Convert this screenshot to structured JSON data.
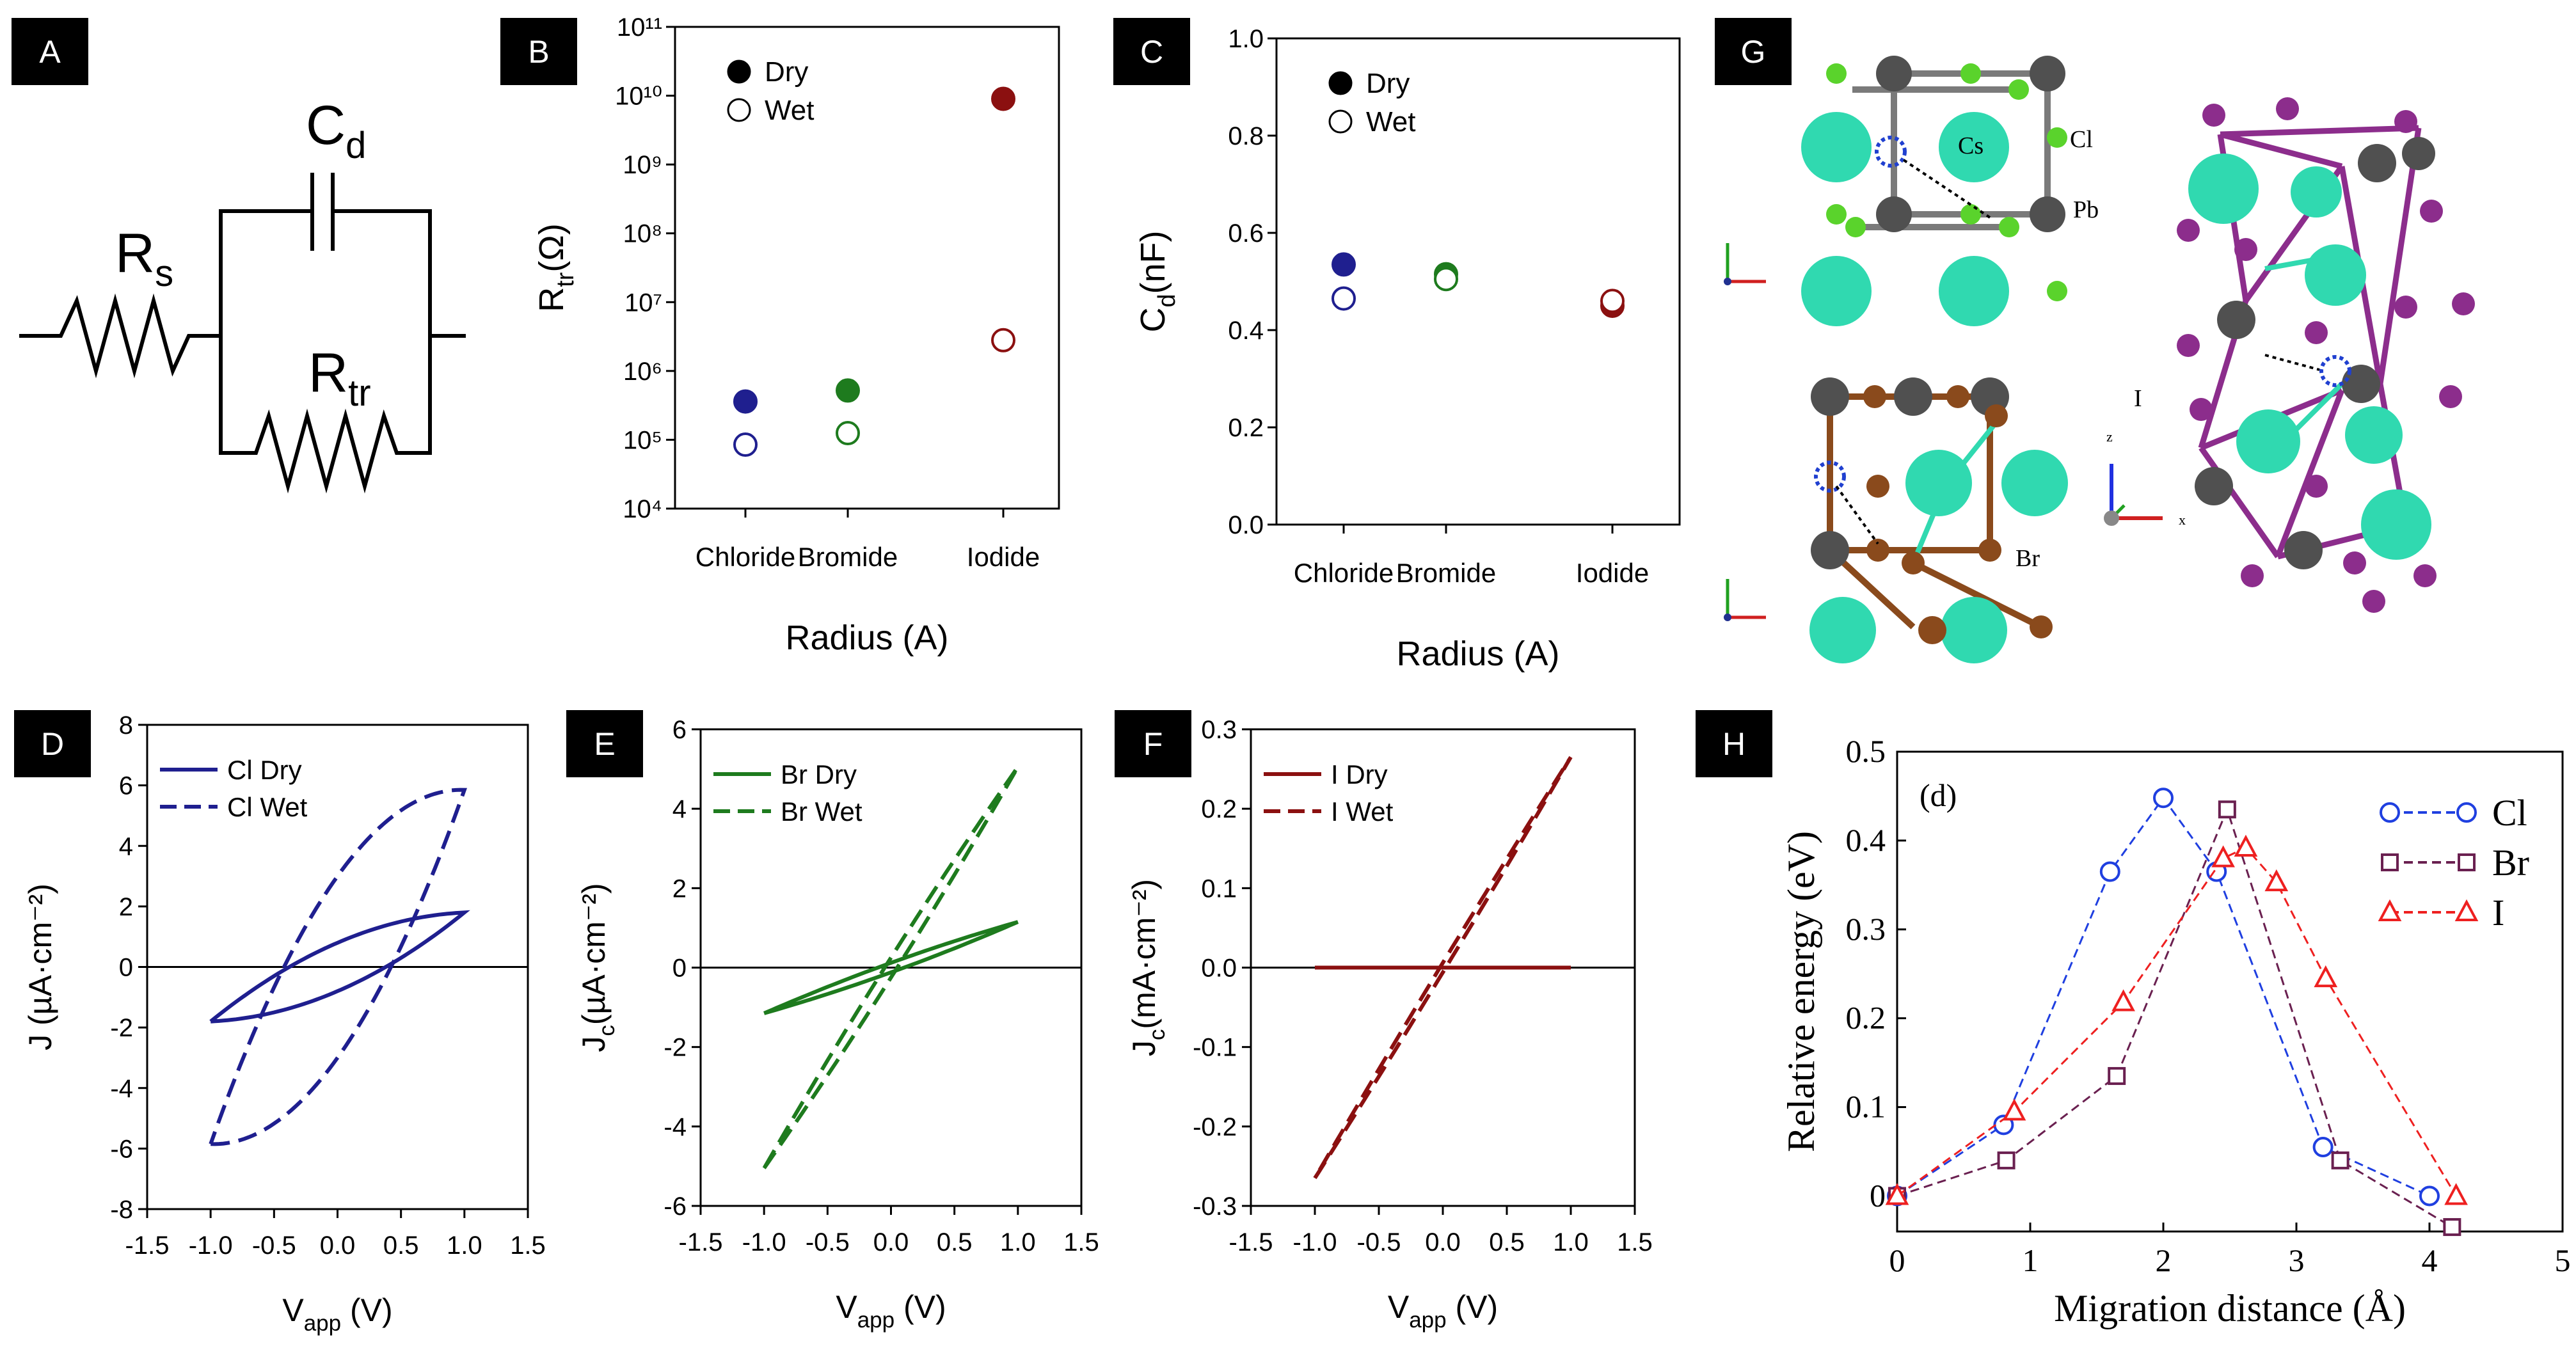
{
  "panels": {
    "A": {
      "label": "A"
    },
    "B": {
      "label": "B"
    },
    "C": {
      "label": "C"
    },
    "D": {
      "label": "D"
    },
    "E": {
      "label": "E"
    },
    "F": {
      "label": "F"
    },
    "G": {
      "label": "G"
    },
    "H": {
      "label": "H"
    }
  },
  "circuit": {
    "rs_main": "R",
    "rs_sub": "s",
    "cd_main": "C",
    "cd_sub": "d",
    "rtr_main": "R",
    "rtr_sub": "tr"
  },
  "structures": {
    "cl_top": {
      "atom_cs": "Cs",
      "atom_cl": "Cl",
      "atom_pb": "Pb"
    },
    "br_bottom": {
      "atom_br": "Br"
    },
    "i_right": {
      "atom_i": "I",
      "axis_x": "x",
      "axis_z": "z"
    }
  },
  "colors": {
    "chloride": "#1f1f8f",
    "bromide": "#1e7b1e",
    "iodide": "#8b1010",
    "h_cl": "#1f3fe0",
    "h_br": "#6a2050",
    "h_i": "#ee2020",
    "cs_atom": "#30d9b0",
    "cl_atom": "#5ad32c",
    "pb_atom": "#505050",
    "br_atom": "#8a4a1c",
    "i_atom": "#8c2d8c"
  },
  "chart_data": [
    {
      "id": "B",
      "type": "scatter",
      "categories": [
        "Chloride",
        "Bromide",
        "Iodide"
      ],
      "yscale": "log",
      "ylim": [
        10000,
        100000000000
      ],
      "yticks": [
        "10⁴",
        "10⁵",
        "10⁶",
        "10⁷",
        "10⁸",
        "10⁹",
        "10¹⁰",
        "10¹¹"
      ],
      "ylabel": {
        "main": "R",
        "sub": "tr",
        "unit": "(Ω)"
      },
      "xlabel": "Radius (A)",
      "legend": [
        "Dry",
        "Wet"
      ],
      "series": [
        {
          "name": "Dry",
          "filled": true,
          "values": [
            360000,
            520000,
            9000000000
          ]
        },
        {
          "name": "Wet",
          "filled": false,
          "values": [
            85000,
            125000,
            2800000
          ]
        }
      ]
    },
    {
      "id": "C",
      "type": "scatter",
      "categories": [
        "Chloride",
        "Bromide",
        "Iodide"
      ],
      "ylim": [
        0,
        1.0
      ],
      "yticks": [
        "0.0",
        "0.2",
        "0.4",
        "0.6",
        "0.8",
        "1.0"
      ],
      "ylabel": {
        "main": "C",
        "sub": "d",
        "unit": "(nF)"
      },
      "xlabel": "Radius (A)",
      "legend": [
        "Dry",
        "Wet"
      ],
      "series": [
        {
          "name": "Dry",
          "filled": true,
          "values": [
            0.535,
            0.515,
            0.45
          ]
        },
        {
          "name": "Wet",
          "filled": false,
          "values": [
            0.465,
            0.505,
            0.46
          ]
        }
      ]
    },
    {
      "id": "D",
      "type": "line",
      "xlim": [
        -1.5,
        1.5
      ],
      "ylim": [
        -8,
        8
      ],
      "xticks": [
        "-1.5",
        "-1.0",
        "-0.5",
        "0.0",
        "0.5",
        "1.0",
        "1.5"
      ],
      "yticks": [
        "-8",
        "-6",
        "-4",
        "-2",
        "0",
        "2",
        "4",
        "6",
        "8"
      ],
      "xlabel": {
        "main": "V",
        "sub": "app",
        "unit": " (V)"
      },
      "ylabel": {
        "main": "J ",
        "sub": "",
        "unit": "(µA·cm⁻²)"
      },
      "legend": [
        "Cl Dry",
        "Cl Wet"
      ],
      "series": [
        {
          "name": "Cl Dry",
          "dashed": false,
          "vmax": 1.0,
          "jmax": 1.8,
          "hys": 0.8
        },
        {
          "name": "Cl Wet",
          "dashed": true,
          "vmax": 1.0,
          "jmax": 5.85,
          "hys": 3.0
        }
      ]
    },
    {
      "id": "E",
      "type": "line",
      "xlim": [
        -1.5,
        1.5
      ],
      "ylim": [
        -6,
        6
      ],
      "xticks": [
        "-1.5",
        "-1.0",
        "-0.5",
        "0.0",
        "0.5",
        "1.0",
        "1.5"
      ],
      "yticks": [
        "-6",
        "-4",
        "-2",
        "0",
        "2",
        "4",
        "6"
      ],
      "xlabel": {
        "main": "V",
        "sub": "app",
        "unit": " (V)"
      },
      "ylabel": {
        "main": "J",
        "sub": "c",
        "unit": "(µA·cm⁻²)"
      },
      "legend": [
        "Br Dry",
        "Br Wet"
      ],
      "series": [
        {
          "name": "Br Dry",
          "dashed": false,
          "vmax": 1.0,
          "jmax": 1.15,
          "hys": 0.12
        },
        {
          "name": "Br Wet",
          "dashed": true,
          "vmax": 1.0,
          "jmax": 5.05,
          "hys": 0.25
        }
      ]
    },
    {
      "id": "F",
      "type": "line",
      "xlim": [
        -1.5,
        1.5
      ],
      "ylim": [
        -0.3,
        0.3
      ],
      "xticks": [
        "-1.5",
        "-1.0",
        "-0.5",
        "0.0",
        "0.5",
        "1.0",
        "1.5"
      ],
      "yticks": [
        "-0.3",
        "-0.2",
        "-0.1",
        "0.0",
        "0.1",
        "0.2",
        "0.3"
      ],
      "xlabel": {
        "main": "V",
        "sub": "app",
        "unit": " (V)"
      },
      "ylabel": {
        "main": "J",
        "sub": "c",
        "unit": "(mA·cm⁻²)"
      },
      "legend": [
        "I Dry",
        "I Wet"
      ],
      "series": [
        {
          "name": "I Dry",
          "dashed": false,
          "vmax": 1.0,
          "jmax": 0.0,
          "hys": 0.0
        },
        {
          "name": "I Wet",
          "dashed": true,
          "vmax": 1.0,
          "jmax": 0.265,
          "hys": 0.006
        }
      ]
    },
    {
      "id": "H",
      "type": "line",
      "annotation": "(d)",
      "xlim": [
        0,
        5
      ],
      "ylim": [
        -0.04,
        0.5
      ],
      "xticks": [
        "0",
        "1",
        "2",
        "3",
        "4",
        "5"
      ],
      "yticks": [
        "0",
        "0.1",
        "0.2",
        "0.3",
        "0.4",
        "0.5"
      ],
      "xlabel": "Migration distance (Å)",
      "ylabel": "Relative energy  (eV)",
      "legend": [
        "Cl",
        "Br",
        "I"
      ],
      "series": [
        {
          "name": "Cl",
          "marker": "circle",
          "x": [
            0,
            0.8,
            1.6,
            2.0,
            2.4,
            3.2,
            4.0
          ],
          "y": [
            0,
            0.08,
            0.365,
            0.448,
            0.365,
            0.055,
            0.0
          ]
        },
        {
          "name": "Br",
          "marker": "square",
          "x": [
            0,
            0.82,
            1.65,
            2.48,
            3.33,
            4.17
          ],
          "y": [
            0,
            0.04,
            0.135,
            0.435,
            0.04,
            -0.035
          ]
        },
        {
          "name": "I",
          "marker": "triangle",
          "x": [
            0,
            0.88,
            1.7,
            2.45,
            2.62,
            2.85,
            3.22,
            4.2
          ],
          "y": [
            0,
            0.095,
            0.218,
            0.38,
            0.392,
            0.353,
            0.245,
            0.0
          ]
        }
      ]
    }
  ]
}
